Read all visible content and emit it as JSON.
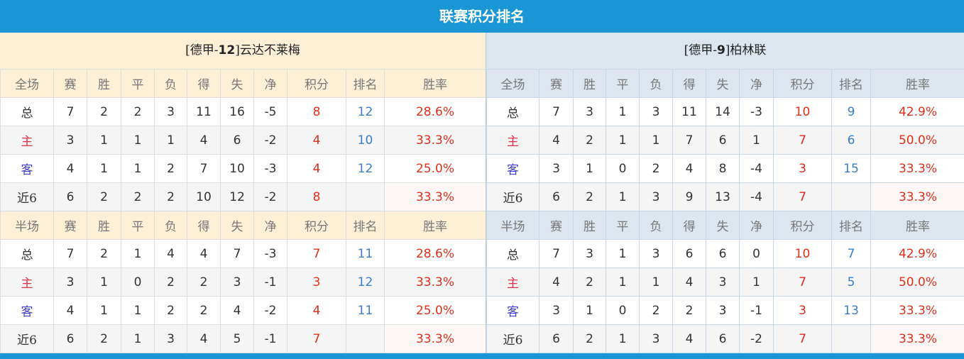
{
  "title": "联赛积分排名",
  "colors": {
    "accent": "#1a96d4",
    "points": "#e03020",
    "rank": "#3a7dc8",
    "home": "#e0304a",
    "away": "#4040d0"
  },
  "teams": [
    {
      "prefix": "[德甲-",
      "rank": "12",
      "suffix": "]云达不莱梅",
      "sections": [
        {
          "header": [
            "全场",
            "赛",
            "胜",
            "平",
            "负",
            "得",
            "失",
            "净",
            "积分",
            "排名",
            "胜率"
          ],
          "rows": [
            [
              "总",
              "7",
              "2",
              "2",
              "3",
              "11",
              "16",
              "-5",
              "8",
              "12",
              "28.6%"
            ],
            [
              "主",
              "3",
              "1",
              "1",
              "1",
              "4",
              "6",
              "-2",
              "4",
              "10",
              "33.3%"
            ],
            [
              "客",
              "4",
              "1",
              "1",
              "2",
              "7",
              "10",
              "-3",
              "4",
              "12",
              "25.0%"
            ],
            [
              "近6",
              "6",
              "2",
              "2",
              "2",
              "10",
              "12",
              "-2",
              "8",
              "",
              "33.3%"
            ]
          ]
        },
        {
          "header": [
            "半场",
            "赛",
            "胜",
            "平",
            "负",
            "得",
            "失",
            "净",
            "积分",
            "排名",
            "胜率"
          ],
          "rows": [
            [
              "总",
              "7",
              "2",
              "1",
              "4",
              "4",
              "7",
              "-3",
              "7",
              "11",
              "28.6%"
            ],
            [
              "主",
              "3",
              "1",
              "0",
              "2",
              "2",
              "3",
              "-1",
              "3",
              "12",
              "33.3%"
            ],
            [
              "客",
              "4",
              "1",
              "1",
              "2",
              "2",
              "4",
              "-2",
              "4",
              "11",
              "25.0%"
            ],
            [
              "近6",
              "6",
              "2",
              "1",
              "3",
              "4",
              "5",
              "-1",
              "7",
              "",
              "33.3%"
            ]
          ]
        }
      ]
    },
    {
      "prefix": "[德甲-",
      "rank": "9",
      "suffix": "]柏林联",
      "sections": [
        {
          "header": [
            "全场",
            "赛",
            "胜",
            "平",
            "负",
            "得",
            "失",
            "净",
            "积分",
            "排名",
            "胜率"
          ],
          "rows": [
            [
              "总",
              "7",
              "3",
              "1",
              "3",
              "11",
              "14",
              "-3",
              "10",
              "9",
              "42.9%"
            ],
            [
              "主",
              "4",
              "2",
              "1",
              "1",
              "7",
              "6",
              "1",
              "7",
              "6",
              "50.0%"
            ],
            [
              "客",
              "3",
              "1",
              "0",
              "2",
              "4",
              "8",
              "-4",
              "3",
              "15",
              "33.3%"
            ],
            [
              "近6",
              "6",
              "2",
              "1",
              "3",
              "9",
              "13",
              "-4",
              "7",
              "",
              "33.3%"
            ]
          ]
        },
        {
          "header": [
            "半场",
            "赛",
            "胜",
            "平",
            "负",
            "得",
            "失",
            "净",
            "积分",
            "排名",
            "胜率"
          ],
          "rows": [
            [
              "总",
              "7",
              "3",
              "1",
              "3",
              "6",
              "6",
              "0",
              "10",
              "7",
              "42.9%"
            ],
            [
              "主",
              "4",
              "2",
              "1",
              "1",
              "4",
              "3",
              "1",
              "7",
              "5",
              "50.0%"
            ],
            [
              "客",
              "3",
              "1",
              "0",
              "2",
              "2",
              "3",
              "-1",
              "3",
              "13",
              "33.3%"
            ],
            [
              "近6",
              "6",
              "2",
              "1",
              "3",
              "4",
              "6",
              "-2",
              "7",
              "",
              "33.3%"
            ]
          ]
        }
      ]
    }
  ]
}
